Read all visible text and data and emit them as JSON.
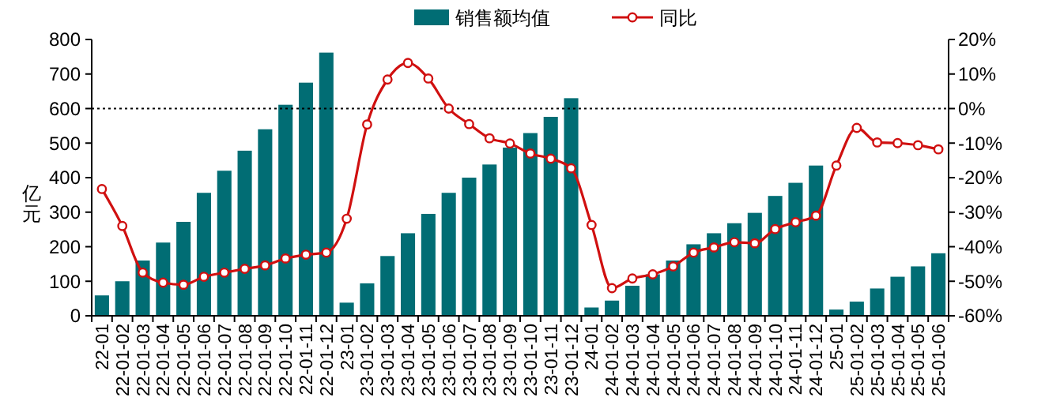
{
  "chart_data": {
    "type": "bar",
    "ylabel": "亿元",
    "categories": [
      "22-01",
      "22-01-02",
      "22-01-03",
      "22-01-04",
      "22-01-05",
      "22-01-06",
      "22-01-07",
      "22-01-08",
      "22-01-09",
      "22-01-10",
      "22-01-11",
      "22-01-12",
      "23-01",
      "23-01-02",
      "23-01-03",
      "23-01-04",
      "23-01-05",
      "23-01-06",
      "23-01-07",
      "23-01-08",
      "23-01-09",
      "23-01-10",
      "23-01-11",
      "23-01-12",
      "24-01",
      "24-01-02",
      "24-01-03",
      "24-01-04",
      "24-01-05",
      "24-01-06",
      "24-01-07",
      "24-01-08",
      "24-01-09",
      "24-01-10",
      "24-01-11",
      "24-01-12",
      "25-01",
      "25-01-02",
      "25-01-03",
      "25-01-04",
      "25-01-05",
      "25-01-06"
    ],
    "series": [
      {
        "name": "销售额均值",
        "color": "#016d74",
        "values": [
          59,
          100,
          160,
          212,
          272,
          356,
          420,
          478,
          540,
          611,
          675,
          762,
          38,
          94,
          173,
          239,
          295,
          356,
          400,
          438,
          487,
          529,
          576,
          630,
          24,
          44,
          87,
          120,
          160,
          207,
          239,
          268,
          298,
          347,
          385,
          435,
          18,
          41,
          79,
          113,
          143,
          181
        ]
      },
      {
        "name": "同比",
        "type": "line",
        "axis": "y2",
        "color": "#d01010",
        "marker": "circle",
        "values": [
          -23.3,
          -34,
          -47.5,
          -50.4,
          -51,
          -48.7,
          -47.5,
          -46.4,
          -45.4,
          -43.4,
          -42.3,
          -41.7,
          -31.9,
          -4.6,
          8.4,
          13.2,
          8.7,
          0,
          -4.5,
          -8.6,
          -10.1,
          -13,
          -14.5,
          -17.3,
          -33.7,
          -52,
          -49.2,
          -48,
          -45.7,
          -41.7,
          -40.2,
          -38.7,
          -39,
          -34.9,
          -32.9,
          -31,
          -16.5,
          -5.6,
          -9.8,
          -10,
          -10.6,
          -11.8
        ]
      }
    ],
    "ylim": [
      0,
      800
    ],
    "yticks": [
      0,
      100,
      200,
      300,
      400,
      500,
      600,
      700,
      800
    ],
    "y2lim": [
      -60,
      20
    ],
    "y2ticks": [
      {
        "value": -60,
        "label": "-60%"
      },
      {
        "value": -50,
        "label": "-50%"
      },
      {
        "value": -40,
        "label": "-40%"
      },
      {
        "value": -30,
        "label": "-30%"
      },
      {
        "value": -20,
        "label": "-20%"
      },
      {
        "value": -10,
        "label": "-10%"
      },
      {
        "value": 0,
        "label": "0%"
      },
      {
        "value": 10,
        "label": "10%"
      },
      {
        "value": 20,
        "label": "20%"
      }
    ],
    "ref_lines": [
      {
        "axis": "y2",
        "value": 0,
        "line_style": "dotted",
        "color": "#000000"
      }
    ],
    "legend": "top",
    "grid": false
  }
}
